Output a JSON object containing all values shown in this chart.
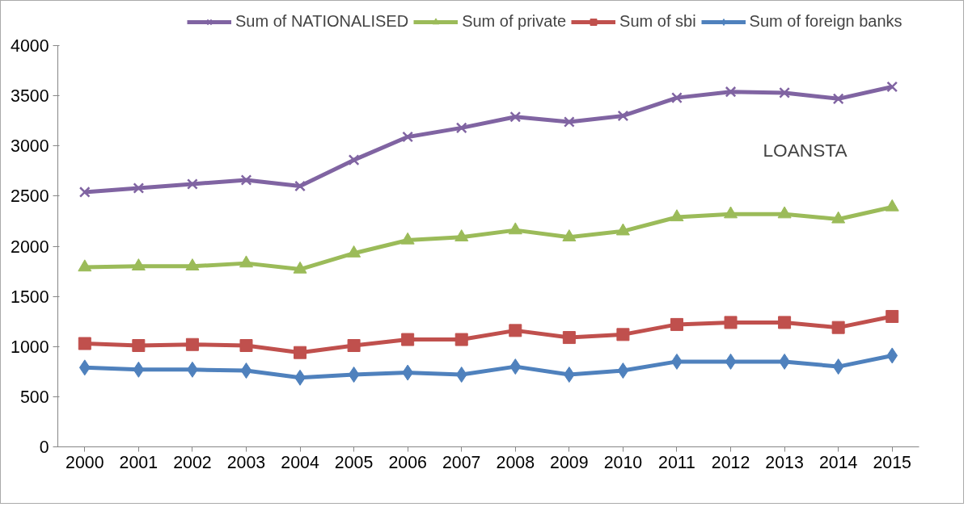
{
  "chart_data": {
    "type": "line",
    "categories": [
      "2000",
      "2001",
      "2002",
      "2003",
      "2004",
      "2005",
      "2006",
      "2007",
      "2008",
      "2009",
      "2010",
      "2011",
      "2012",
      "2013",
      "2014",
      "2015"
    ],
    "series": [
      {
        "name": "Sum of NATIONALISED",
        "color": "#8064a2",
        "marker": "cross",
        "values": [
          2540,
          2580,
          2620,
          2660,
          2600,
          2860,
          3090,
          3180,
          3290,
          3240,
          3300,
          3480,
          3540,
          3530,
          3470,
          3590
        ]
      },
      {
        "name": "Sum of private",
        "color": "#9bbb59",
        "marker": "triangle",
        "values": [
          1790,
          1800,
          1800,
          1830,
          1770,
          1930,
          2060,
          2090,
          2160,
          2090,
          2150,
          2290,
          2320,
          2320,
          2270,
          2390
        ]
      },
      {
        "name": "Sum of sbi",
        "color": "#c0504d",
        "marker": "square",
        "values": [
          1030,
          1010,
          1020,
          1010,
          940,
          1010,
          1070,
          1070,
          1160,
          1090,
          1120,
          1220,
          1240,
          1240,
          1190,
          1300
        ]
      },
      {
        "name": "Sum of foreign banks",
        "color": "#4f81bd",
        "marker": "diamond",
        "values": [
          790,
          770,
          770,
          760,
          690,
          720,
          740,
          720,
          800,
          720,
          760,
          850,
          850,
          850,
          800,
          910
        ]
      }
    ],
    "ylim": [
      0,
      4000
    ],
    "yticks": [
      0,
      500,
      1000,
      1500,
      2000,
      2500,
      3000,
      3500,
      4000
    ],
    "annotations": [
      "LOANSTA"
    ],
    "legend": "top",
    "grid": false,
    "line_style": "solid"
  }
}
